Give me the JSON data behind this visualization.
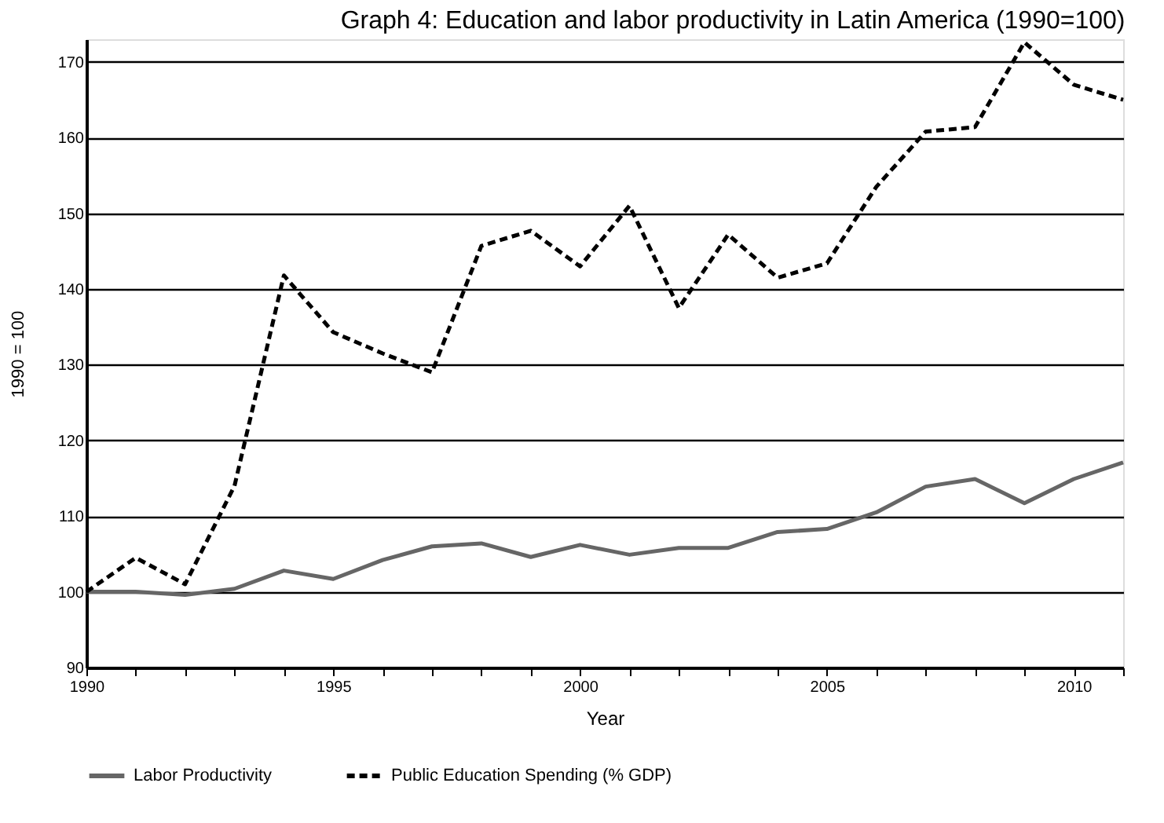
{
  "chart_data": {
    "type": "line",
    "title": "Graph 4: Education and labor productivity in Latin America (1990=100)",
    "xlabel": "Year",
    "ylabel": "1990 = 100",
    "x": [
      1990,
      1991,
      1992,
      1993,
      1994,
      1995,
      1996,
      1997,
      1998,
      1999,
      2000,
      2001,
      2002,
      2003,
      2004,
      2005,
      2006,
      2007,
      2008,
      2009,
      2010,
      2011
    ],
    "series": [
      {
        "name": "Labor Productivity",
        "color": "#666666",
        "line_style": "solid",
        "values": [
          100,
          100,
          99.6,
          100.4,
          102.8,
          101.7,
          104.2,
          106,
          106.4,
          104.6,
          106.2,
          104.9,
          105.8,
          105.8,
          107.9,
          108.3,
          110.5,
          113.9,
          114.9,
          111.7,
          114.9,
          117.1
        ]
      },
      {
        "name": "Public Education Spending (% GDP)",
        "color": "#000000",
        "line_style": "dashed",
        "values": [
          100,
          104.5,
          101,
          114,
          141.8,
          134.3,
          131.5,
          129,
          145.7,
          147.7,
          143,
          151,
          137.5,
          147.2,
          141.5,
          143.4,
          153.5,
          160.8,
          161.4,
          172.6,
          167,
          165
        ]
      }
    ],
    "xlim": [
      1990,
      2011
    ],
    "xticks": [
      1990,
      {
        "value": 1991,
        "label": null
      },
      {
        "value": 1992,
        "label": null
      },
      {
        "value": 1993,
        "label": null
      },
      {
        "value": 1994,
        "label": null
      },
      1995,
      {
        "value": 1996,
        "label": null
      },
      {
        "value": 1997,
        "label": null
      },
      {
        "value": 1998,
        "label": null
      },
      {
        "value": 1999,
        "label": null
      },
      2000,
      {
        "value": 2001,
        "label": null
      },
      {
        "value": 2002,
        "label": null
      },
      {
        "value": 2003,
        "label": null
      },
      {
        "value": 2004,
        "label": null
      },
      2005,
      {
        "value": 2006,
        "label": null
      },
      {
        "value": 2007,
        "label": null
      },
      {
        "value": 2008,
        "label": null
      },
      {
        "value": 2009,
        "label": null
      },
      2010,
      {
        "value": 2011,
        "label": null
      }
    ],
    "ylim": [
      90,
      173
    ],
    "yticks": [
      90,
      100,
      110,
      120,
      130,
      140,
      150,
      160,
      170
    ],
    "grid": "y",
    "legend": "bottom",
    "marker": "none"
  }
}
